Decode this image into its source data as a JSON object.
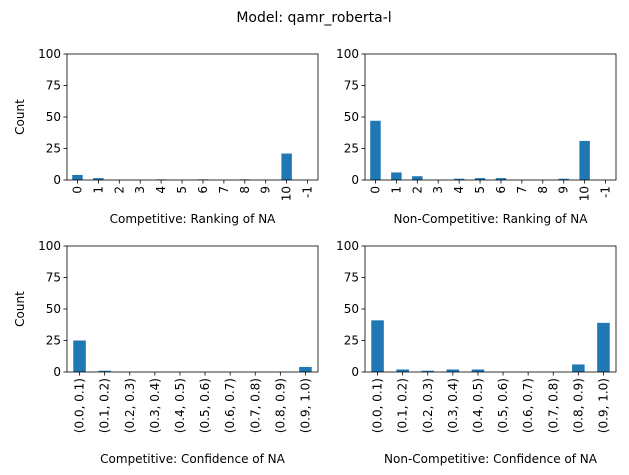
{
  "suptitle": "Model: qamr_roberta-l",
  "bar_color": "#1f77b4",
  "chart_data": [
    {
      "type": "bar",
      "xlabel": "Competitive: Ranking of NA",
      "ylabel": "Count",
      "ylim": [
        0,
        100
      ],
      "yticks": [
        "0",
        "25",
        "50",
        "75",
        "100"
      ],
      "categories": [
        "0",
        "1",
        "2",
        "3",
        "4",
        "5",
        "6",
        "7",
        "8",
        "9",
        "10",
        "-1"
      ],
      "values": [
        4,
        1.5,
        0,
        0,
        0.5,
        0,
        0.5,
        0,
        0.5,
        0,
        21,
        0
      ]
    },
    {
      "type": "bar",
      "xlabel": "Non-Competitive: Ranking of NA",
      "ylabel": "",
      "ylim": [
        0,
        100
      ],
      "yticks": [
        "0",
        "25",
        "50",
        "75",
        "100"
      ],
      "categories": [
        "0",
        "1",
        "2",
        "3",
        "4",
        "5",
        "6",
        "7",
        "8",
        "9",
        "10",
        "-1"
      ],
      "values": [
        47,
        6,
        3,
        0,
        1,
        1.5,
        1.5,
        0,
        0,
        1,
        31,
        0
      ]
    },
    {
      "type": "bar",
      "xlabel": "Competitive: Confidence of NA",
      "ylabel": "Count",
      "ylim": [
        0,
        100
      ],
      "yticks": [
        "0",
        "25",
        "50",
        "75",
        "100"
      ],
      "categories": [
        "(0.0, 0.1)",
        "(0.1, 0.2)",
        "(0.2, 0.3)",
        "(0.3, 0.4)",
        "(0.4, 0.5)",
        "(0.5, 0.6)",
        "(0.6, 0.7)",
        "(0.7, 0.8)",
        "(0.8, 0.9)",
        "(0.9, 1.0)"
      ],
      "values": [
        25,
        1,
        0,
        0,
        0,
        0,
        0,
        0,
        0,
        4
      ]
    },
    {
      "type": "bar",
      "xlabel": "Non-Competitive: Confidence of NA",
      "ylabel": "",
      "ylim": [
        0,
        100
      ],
      "yticks": [
        "0",
        "25",
        "50",
        "75",
        "100"
      ],
      "categories": [
        "(0.0, 0.1)",
        "(0.1, 0.2)",
        "(0.2, 0.3)",
        "(0.3, 0.4)",
        "(0.4, 0.5)",
        "(0.5, 0.6)",
        "(0.6, 0.7)",
        "(0.7, 0.8)",
        "(0.8, 0.9)",
        "(0.9, 1.0)"
      ],
      "values": [
        41,
        2,
        1,
        2,
        2,
        0,
        0,
        0,
        6,
        39
      ]
    }
  ]
}
